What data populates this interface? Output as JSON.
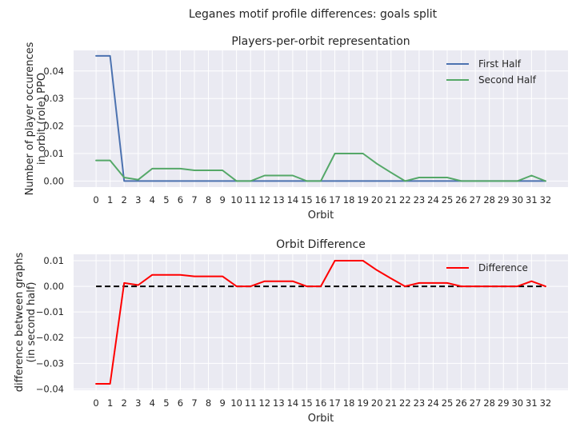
{
  "suptitle": "Leganes motif profile differences: goals split",
  "chart_data": [
    {
      "type": "line",
      "title": "Players-per-orbit representation",
      "xlabel": "Orbit",
      "ylabel_lines": [
        "Number of player occurences",
        "in orbit (role) PPO"
      ],
      "x": [
        0,
        1,
        2,
        3,
        4,
        5,
        6,
        7,
        8,
        9,
        10,
        11,
        12,
        13,
        14,
        15,
        16,
        17,
        18,
        19,
        20,
        21,
        22,
        23,
        24,
        25,
        26,
        27,
        28,
        29,
        30,
        31,
        32
      ],
      "xlim": [
        -1.6,
        33.6
      ],
      "ylim": [
        -0.0022,
        0.0475
      ],
      "yticks": [
        0.0,
        0.01,
        0.02,
        0.03,
        0.04
      ],
      "ytick_labels": [
        "0.00",
        "0.01",
        "0.02",
        "0.03",
        "0.04"
      ],
      "legend_position": "upper-right",
      "grid": true,
      "series": [
        {
          "name": "First Half",
          "color": "#4c72b0",
          "values": [
            0.0455,
            0.0455,
            0,
            0,
            0,
            0,
            0,
            0,
            0,
            0,
            0,
            0,
            0,
            0,
            0,
            0,
            0,
            0,
            0,
            0,
            0,
            0,
            0,
            0,
            0,
            0,
            0,
            0,
            0,
            0,
            0,
            0,
            0
          ]
        },
        {
          "name": "Second Half",
          "color": "#55a868",
          "values": [
            0.0075,
            0.0075,
            0.0013,
            0.0005,
            0.0045,
            0.0045,
            0.0045,
            0.0039,
            0.0039,
            0.0039,
            0,
            0,
            0.002,
            0.002,
            0.002,
            0,
            0,
            0.01,
            0.01,
            0.01,
            0.0063,
            0.0031,
            0,
            0.0013,
            0.0013,
            0.0013,
            0,
            0,
            0,
            0,
            0,
            0.002,
            0
          ]
        }
      ]
    },
    {
      "type": "line",
      "title": "Orbit Difference",
      "xlabel": "Orbit",
      "ylabel_lines": [
        "difference between graphs",
        "(in second half)"
      ],
      "x": [
        0,
        1,
        2,
        3,
        4,
        5,
        6,
        7,
        8,
        9,
        10,
        11,
        12,
        13,
        14,
        15,
        16,
        17,
        18,
        19,
        20,
        21,
        22,
        23,
        24,
        25,
        26,
        27,
        28,
        29,
        30,
        31,
        32
      ],
      "xlim": [
        -1.6,
        33.6
      ],
      "ylim": [
        -0.0405,
        0.0125
      ],
      "yticks": [
        -0.04,
        -0.03,
        -0.02,
        -0.01,
        0.0,
        0.01
      ],
      "ytick_labels": [
        "−0.04",
        "−0.03",
        "−0.02",
        "−0.01",
        "0.00",
        "0.01"
      ],
      "legend_position": "upper-right",
      "grid": true,
      "zero_line": {
        "y": 0,
        "color": "#000000",
        "style": "dashed"
      },
      "series": [
        {
          "name": "Difference",
          "color": "#ff0000",
          "values": [
            -0.038,
            -0.038,
            0.0013,
            0.0005,
            0.0045,
            0.0045,
            0.0045,
            0.0039,
            0.0039,
            0.0039,
            0,
            0,
            0.002,
            0.002,
            0.002,
            0,
            0,
            0.01,
            0.01,
            0.01,
            0.0063,
            0.0031,
            0,
            0.0013,
            0.0013,
            0.0013,
            0,
            0,
            0,
            0,
            0,
            0.002,
            0
          ]
        }
      ]
    }
  ]
}
